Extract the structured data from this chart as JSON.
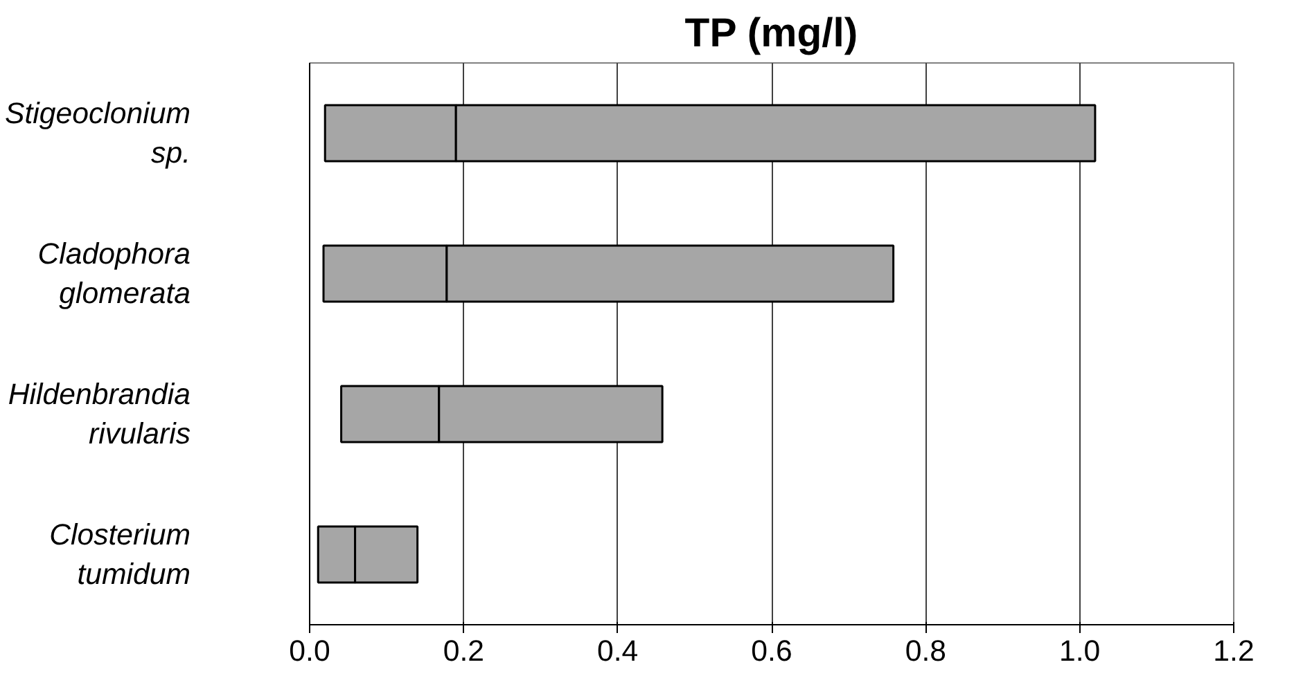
{
  "chart_data": {
    "type": "bar",
    "title": "TP (mg/l)",
    "orientation": "horizontal",
    "categories": [
      "Stigeoclonium sp.",
      "Cladophora glomerata",
      "Hildenbrandia rivularis",
      "Closterium tumidum"
    ],
    "series": [
      {
        "color": "#a6a6a6",
        "base": [
          0.02,
          0.018,
          0.041,
          0.011
        ],
        "values": [
          0.17,
          0.16,
          0.127,
          0.048
        ]
      },
      {
        "color": "#a6a6a6",
        "base": [
          0.19,
          0.178,
          0.168,
          0.059
        ],
        "values": [
          0.83,
          0.58,
          0.29,
          0.081
        ]
      }
    ],
    "xlim": [
      0,
      1.2
    ],
    "xticks": [
      {
        "value": 0,
        "label": "0.0"
      },
      {
        "value": 0.2,
        "label": "0.2"
      },
      {
        "value": 0.4,
        "label": "0.4"
      },
      {
        "value": 0.6,
        "label": "0.6"
      },
      {
        "value": 0.8,
        "label": "0.8"
      },
      {
        "value": 1.0,
        "label": "1.0"
      },
      {
        "value": 1.2,
        "label": "1.2"
      }
    ],
    "grid": "x"
  }
}
